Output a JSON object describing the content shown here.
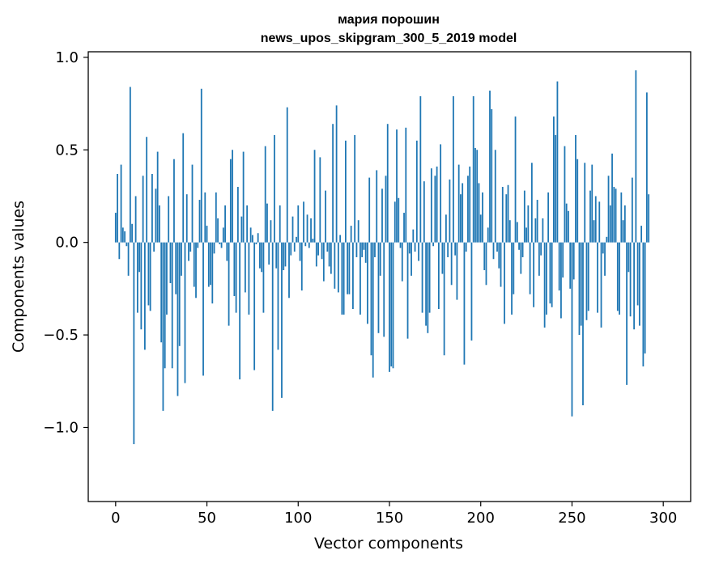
{
  "chart_data": {
    "type": "bar",
    "title": [
      "мария порошин",
      "news_upos_skipgram_300_5_2019 model"
    ],
    "xlabel": "Vector components",
    "ylabel": "Components values",
    "xlim": [
      -15,
      315
    ],
    "ylim": [
      -1.4,
      1.03
    ],
    "x_ticks": [
      0,
      50,
      100,
      150,
      200,
      250,
      300
    ],
    "x_tick_labels": [
      "0",
      "50",
      "100",
      "150",
      "200",
      "250",
      "300"
    ],
    "y_ticks": [
      1.0,
      0.5,
      0.0,
      -0.5,
      -1.0
    ],
    "y_tick_labels": [
      "1.0",
      "0.5",
      "0.0",
      "−0.5",
      "−1.0"
    ],
    "bar_color": "#1f77b4",
    "series": [
      {
        "name": "components",
        "values": [
          0.16,
          0.37,
          -0.09,
          0.42,
          0.08,
          0.06,
          -0.02,
          -0.18,
          0.84,
          0.1,
          -1.09,
          0.25,
          -0.38,
          -0.16,
          -0.47,
          0.36,
          -0.58,
          0.57,
          -0.34,
          -0.37,
          0.37,
          -0.05,
          0.29,
          0.49,
          0.2,
          -0.54,
          -0.91,
          -0.68,
          -0.39,
          0.25,
          -0.22,
          -0.68,
          0.45,
          -0.28,
          -0.83,
          -0.56,
          -0.18,
          0.59,
          -0.76,
          0.26,
          -0.1,
          -0.05,
          0.42,
          -0.24,
          -0.3,
          -0.03,
          0.23,
          0.83,
          -0.72,
          0.27,
          0.09,
          -0.24,
          -0.23,
          -0.33,
          -0.06,
          0.27,
          0.13,
          -0.01,
          -0.03,
          0.08,
          0.2,
          -0.1,
          -0.45,
          0.45,
          0.5,
          -0.29,
          -0.38,
          0.3,
          -0.74,
          0.14,
          0.49,
          -0.27,
          0.2,
          -0.39,
          0.08,
          0.04,
          -0.69,
          -0.01,
          0.05,
          -0.14,
          -0.16,
          -0.38,
          0.52,
          0.21,
          -0.12,
          0.12,
          -0.91,
          0.58,
          -0.14,
          -0.58,
          0.2,
          -0.84,
          -0.15,
          -0.13,
          0.73,
          -0.3,
          -0.07,
          0.14,
          -0.05,
          0.03,
          0.2,
          -0.1,
          -0.26,
          0.22,
          -0.02,
          0.15,
          -0.03,
          0.13,
          0.02,
          0.5,
          -0.13,
          -0.07,
          0.46,
          -0.09,
          -0.21,
          0.28,
          -0.05,
          -0.13,
          -0.17,
          0.64,
          -0.25,
          0.74,
          -0.27,
          0.04,
          -0.39,
          -0.39,
          0.55,
          -0.28,
          -0.28,
          0.09,
          -0.36,
          0.58,
          -0.08,
          0.12,
          -0.39,
          -0.08,
          -0.04,
          -0.11,
          -0.44,
          0.35,
          -0.61,
          -0.73,
          -0.08,
          0.39,
          -0.49,
          -0.18,
          0.29,
          -0.51,
          0.36,
          0.64,
          -0.7,
          -0.67,
          -0.68,
          0.22,
          0.61,
          0.24,
          -0.03,
          -0.21,
          0.16,
          0.62,
          -0.52,
          -0.06,
          -0.18,
          0.07,
          -0.05,
          0.55,
          -0.1,
          0.79,
          -0.38,
          0.33,
          -0.45,
          -0.49,
          -0.38,
          0.4,
          -0.02,
          0.36,
          0.41,
          -0.36,
          0.53,
          -0.17,
          -0.61,
          0.15,
          -0.08,
          0.34,
          -0.23,
          0.79,
          -0.07,
          -0.31,
          0.42,
          0.26,
          0.32,
          -0.66,
          -0.05,
          0.36,
          0.41,
          -0.53,
          0.79,
          0.51,
          0.5,
          0.32,
          0.15,
          0.27,
          -0.15,
          -0.23,
          0.08,
          0.82,
          0.72,
          -0.09,
          0.5,
          -0.05,
          -0.14,
          -0.24,
          0.3,
          -0.44,
          0.26,
          0.31,
          0.12,
          -0.39,
          -0.28,
          0.68,
          0.11,
          -0.04,
          -0.17,
          -0.08,
          0.28,
          0.08,
          0.2,
          -0.28,
          0.43,
          -0.35,
          0.13,
          0.23,
          -0.18,
          -0.07,
          0.13,
          -0.46,
          -0.39,
          0.27,
          -0.33,
          -0.35,
          0.68,
          0.58,
          0.87,
          -0.26,
          -0.41,
          -0.19,
          0.52,
          0.21,
          0.17,
          -0.25,
          -0.94,
          -0.2,
          0.58,
          0.45,
          -0.5,
          -0.45,
          -0.88,
          0.43,
          -0.42,
          -0.37,
          0.28,
          0.42,
          0.12,
          0.25,
          -0.38,
          0.22,
          -0.46,
          -0.06,
          -0.18,
          0.03,
          0.36,
          0.2,
          0.48,
          0.3,
          0.29,
          -0.37,
          -0.39,
          0.27,
          0.12,
          0.2,
          -0.77,
          -0.16,
          -0.4,
          0.35,
          -0.47,
          0.93,
          -0.34,
          -0.45,
          0.09,
          -0.67,
          -0.6,
          0.81,
          0.26
        ]
      }
    ]
  }
}
